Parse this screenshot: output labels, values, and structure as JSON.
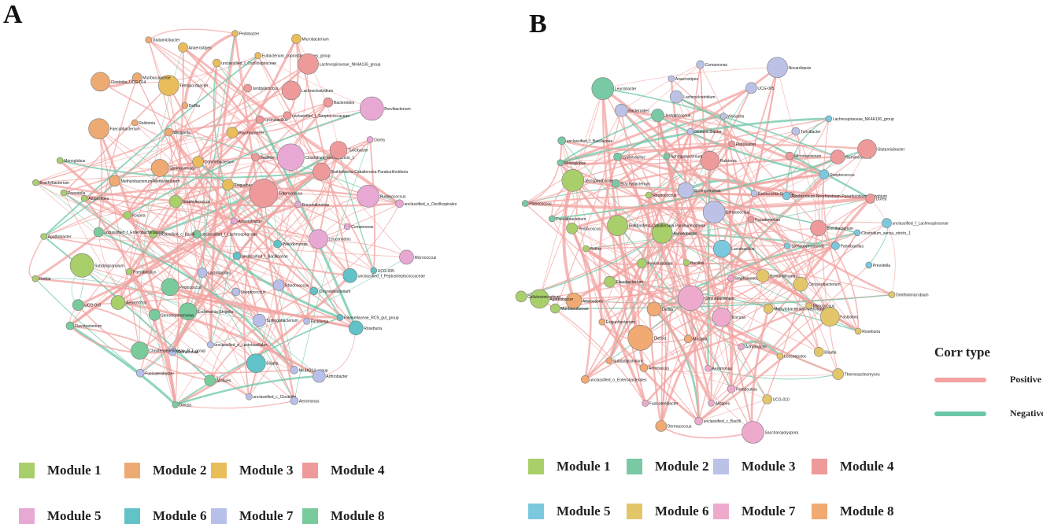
{
  "panels": {
    "a": {
      "letter": "A"
    },
    "b": {
      "letter": "B"
    }
  },
  "colors": {
    "positive_edge": "#f2a3a0",
    "negative_edge": "#6cc7a7",
    "node_stroke": "#7a7a7a"
  },
  "legend_a": [
    {
      "label": "Module 1",
      "color": "#a9cf6b"
    },
    {
      "label": "Module 2",
      "color": "#eeaa73"
    },
    {
      "label": "Module 3",
      "color": "#e9be5a"
    },
    {
      "label": "Module 4",
      "color": "#ee9a9a"
    },
    {
      "label": "Module 5",
      "color": "#e8a8d4"
    },
    {
      "label": "Module 6",
      "color": "#61c3c7"
    },
    {
      "label": "Module 7",
      "color": "#b8c0ea"
    },
    {
      "label": "Module 8",
      "color": "#79cb9c"
    }
  ],
  "legend_b": [
    {
      "label": "Module 1",
      "color": "#a9cf6b"
    },
    {
      "label": "Module 2",
      "color": "#79c9a4"
    },
    {
      "label": "Module 3",
      "color": "#bcc2e6"
    },
    {
      "label": "Module 4",
      "color": "#ee9a9a"
    },
    {
      "label": "Module 5",
      "color": "#7cc8de"
    },
    {
      "label": "Module 6",
      "color": "#e3c66a"
    },
    {
      "label": "Module 7",
      "color": "#eeaacd"
    },
    {
      "label": "Module 8",
      "color": "#f0aa72"
    }
  ],
  "corr": {
    "title": "Corr type",
    "positive": "Positive",
    "negative": "Negative"
  },
  "nodes_a": [
    "Acinetobacter",
    "unclassified_f_Lachnospiraceae",
    "Exiguobacterium",
    "unclassified_f_Bacillaceae",
    "Staphylococcus",
    "Enterococcus",
    "Lactobacillus",
    "Corynebacterium",
    "Pseudomonas",
    "unclassified_c_Bacilli",
    "Bacillus",
    "Streptococcus",
    "Sphingomonas",
    "Brevundimonas",
    "Pediococcus",
    "Psychrobacter",
    "Rhodococcus",
    "Kocuria",
    "Clostridium_sensu_stricto_1",
    "Escherichia-Shigella",
    "Weissella",
    "Leuconostoc",
    "Paenibacillus",
    "Lysinibacillus",
    "Sphingobacterium",
    "Methylobacterium-Methylorubrum",
    "Burkholderia-Caballeronia-Paraburkholderia",
    "Stenotrophomonas",
    "Delftia",
    "Chryseobacterium",
    "unclassified_f_Enterobacteriaceae",
    "unclassified_f_Streptococcaceae",
    "unclassified_o_Lactobacillales",
    "Ralstonia",
    "Comamonas",
    "Aerococcus",
    "Jeotgalicoccus",
    "Facklamia",
    "Atopostipes",
    "Turicibacter",
    "Romboutsia",
    "Terrisporobacter",
    "unclassified_f_Peptostreptococcaceae",
    "Subdoligranulum",
    "Lachnoclostridium",
    "Blautia",
    "Faecalibacterium",
    "Ruminococcus",
    "Christensenellaceae_R-7_group",
    "unclassified_f_Oscillospiraceae",
    "Rikenellaceae_RC9_gut_group",
    "Prevotella",
    "Bacteroides",
    "Alistipes",
    "Muribaculaceae",
    "UCG-005",
    "UCG-010",
    "Eubacterium_coprostanoligenes_group",
    "NK4A214_group",
    "Monoglobus",
    "Dorea",
    "Fusicatenibacter",
    "Anaerostipes",
    "Roseburia",
    "Agathobacter",
    "Lachnospiraceae_NK4A136_group",
    "unclassified_c_Clostridia",
    "Clostridia_UCG-014",
    "unclassified_o_Oscillospirales",
    "Flavobacterium",
    "Pedobacter",
    "Arthrobacter",
    "Brachybacterium",
    "Brevibacterium",
    "Dietzia",
    "Glutamicibacter",
    "Micrococcus",
    "Rothia",
    "Microbacterium",
    "Aeromonas"
  ],
  "nodes_b": [
    "Lactobacillus",
    "Bacillus",
    "Enterococcus",
    "Staphylococcus",
    "Acinetobacter",
    "Pseudomonas",
    "Corynebacterium",
    "Sphingomonas",
    "Brevundimonas",
    "Psychrobacter",
    "Escherichia-Shigella",
    "Kocuria",
    "Rhodococcus",
    "Stenotrophomonas",
    "Delftia",
    "Ralstonia",
    "Methylobacterium-Methylorubrum",
    "Burkholderia-Caballeronia-Paraburkholderia",
    "Allorhizobium-Neorhizobium-Pararhizobium-Rhizobium",
    "Massilia",
    "Sphingobacterium",
    "Chryseobacterium",
    "Flavobacterium",
    "Pedobacter",
    "Arthrobacter",
    "Brachybacterium",
    "Brevibacterium",
    "Dietzia",
    "Glutamicibacter",
    "Micrococcus",
    "Rothia",
    "Microbacterium",
    "Aeromonas",
    "Lysinibacillus",
    "Paenibacillus",
    "Exiguobacterium",
    "Weissella",
    "Leuconostoc",
    "Pediococcus",
    "Streptococcus",
    "Aerococcus",
    "Jeotgalicoccus",
    "Facklamia",
    "Atopostipes",
    "Turicibacter",
    "Romboutsia",
    "Terrisporobacter",
    "Clostridium_sensu_stricto_1",
    "Subdoligranulum",
    "Lachnoclostridium",
    "Blautia",
    "Faecalibacterium",
    "Ruminococcus",
    "Alistipes",
    "Bacteroides",
    "Prevotella",
    "Muribaculaceae",
    "UCG-005",
    "UCG-010",
    "Monoglobus",
    "Dorea",
    "Fusicatenibacter",
    "Anaerostipes",
    "Roseburia",
    "Agathobacter",
    "Lachnospiraceae_NK4A136_group",
    "unclassified_c_Bacilli",
    "unclassified_f_Bacillaceae",
    "unclassified_f_Lachnospiraceae",
    "unclassified_o_Enterobacterales",
    "Comamonas",
    "Thermoactinomyces",
    "Planococcus",
    "Glutamicibacter",
    "Dermacoccus",
    "Leucobacter",
    "Ornithinimicrobium",
    "Cellulosimicrobium",
    "Nocardiopsis",
    "Saccharopolyspora"
  ]
}
